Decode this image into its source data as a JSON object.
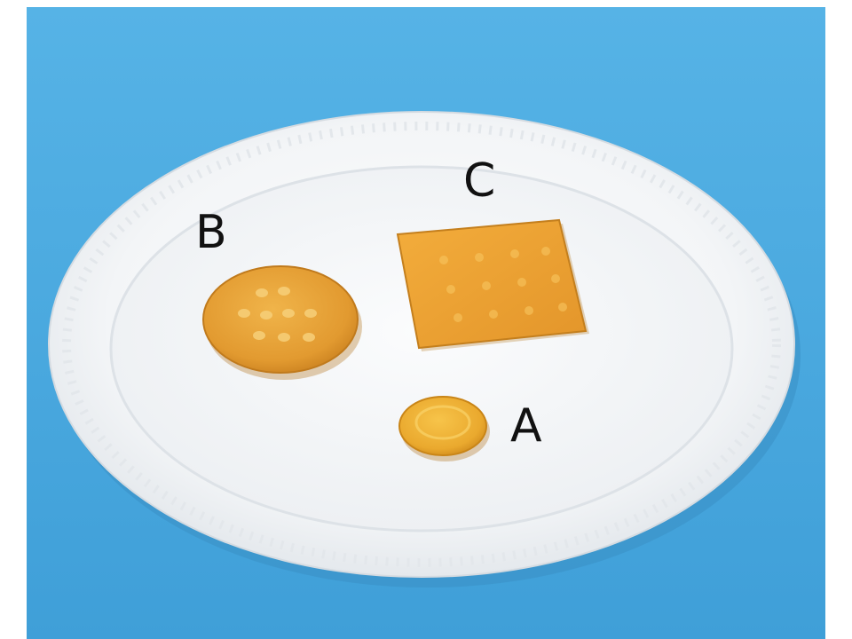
{
  "scene": {
    "background_color": "#4aa8de",
    "plate_color": "#f4f6f8",
    "cracker_color": "#e9a236"
  },
  "labels": {
    "a": "A",
    "b": "B",
    "c": "C"
  },
  "objects": [
    {
      "label": "A",
      "shape": "small-round-cracker"
    },
    {
      "label": "B",
      "shape": "round-cracker"
    },
    {
      "label": "C",
      "shape": "square-cracker"
    }
  ]
}
